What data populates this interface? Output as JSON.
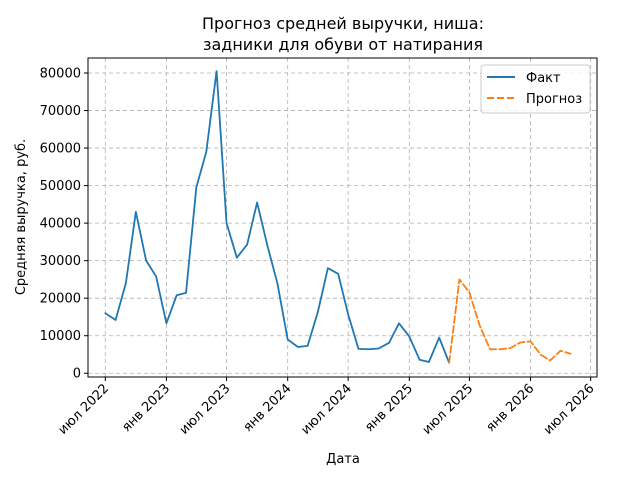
{
  "chart_data": {
    "type": "line",
    "title_line1": "Прогноз средней выручки, ниша:",
    "title_line2": "задники для обуви от натирания",
    "xlabel": "Дата",
    "ylabel": "Средняя выручка, руб.",
    "ylim": [
      -1000,
      84000
    ],
    "xlim": [
      "2022-05-10",
      "2026-07-20"
    ],
    "grid": true,
    "legend_position": "top-right",
    "x_ticks": [
      {
        "date": "2022-07-01",
        "label": "июл 2022"
      },
      {
        "date": "2023-01-01",
        "label": "янв 2023"
      },
      {
        "date": "2023-07-01",
        "label": "июл 2023"
      },
      {
        "date": "2024-01-01",
        "label": "янв 2024"
      },
      {
        "date": "2024-07-01",
        "label": "июл 2024"
      },
      {
        "date": "2025-01-01",
        "label": "янв 2025"
      },
      {
        "date": "2025-07-01",
        "label": "июл 2025"
      },
      {
        "date": "2026-01-01",
        "label": "янв 2026"
      },
      {
        "date": "2026-07-01",
        "label": "июл 2026"
      }
    ],
    "y_ticks": [
      0,
      10000,
      20000,
      30000,
      40000,
      50000,
      60000,
      70000,
      80000
    ],
    "series": [
      {
        "name": "Факт",
        "color": "#1f77b4",
        "style": "solid",
        "points": [
          {
            "x": "2022-07-01",
            "y": 16000
          },
          {
            "x": "2022-08-01",
            "y": 14200
          },
          {
            "x": "2022-09-01",
            "y": 24000
          },
          {
            "x": "2022-10-01",
            "y": 43000
          },
          {
            "x": "2022-11-01",
            "y": 30000
          },
          {
            "x": "2022-12-01",
            "y": 25800
          },
          {
            "x": "2023-01-01",
            "y": 13300
          },
          {
            "x": "2023-02-01",
            "y": 20800
          },
          {
            "x": "2023-03-01",
            "y": 21400
          },
          {
            "x": "2023-04-01",
            "y": 49500
          },
          {
            "x": "2023-05-01",
            "y": 59000
          },
          {
            "x": "2023-06-01",
            "y": 80500
          },
          {
            "x": "2023-07-01",
            "y": 40000
          },
          {
            "x": "2023-08-01",
            "y": 30800
          },
          {
            "x": "2023-09-01",
            "y": 34300
          },
          {
            "x": "2023-10-01",
            "y": 45500
          },
          {
            "x": "2023-11-01",
            "y": 34000
          },
          {
            "x": "2023-12-01",
            "y": 24000
          },
          {
            "x": "2024-01-01",
            "y": 9000
          },
          {
            "x": "2024-02-01",
            "y": 7000
          },
          {
            "x": "2024-03-01",
            "y": 7300
          },
          {
            "x": "2024-04-01",
            "y": 16400
          },
          {
            "x": "2024-05-01",
            "y": 28000
          },
          {
            "x": "2024-06-01",
            "y": 26500
          },
          {
            "x": "2024-07-01",
            "y": 15700
          },
          {
            "x": "2024-08-01",
            "y": 6500
          },
          {
            "x": "2024-09-01",
            "y": 6400
          },
          {
            "x": "2024-10-01",
            "y": 6600
          },
          {
            "x": "2024-11-01",
            "y": 8100
          },
          {
            "x": "2024-12-01",
            "y": 13300
          },
          {
            "x": "2025-01-01",
            "y": 9800
          },
          {
            "x": "2025-02-01",
            "y": 3600
          },
          {
            "x": "2025-03-01",
            "y": 3000
          },
          {
            "x": "2025-04-01",
            "y": 9500
          },
          {
            "x": "2025-05-01",
            "y": 2800
          }
        ]
      },
      {
        "name": "Прогноз",
        "color": "#ff7f0e",
        "style": "dashed",
        "points": [
          {
            "x": "2025-05-01",
            "y": 2800
          },
          {
            "x": "2025-06-01",
            "y": 25000
          },
          {
            "x": "2025-07-01",
            "y": 21500
          },
          {
            "x": "2025-08-01",
            "y": 12700
          },
          {
            "x": "2025-09-01",
            "y": 6400
          },
          {
            "x": "2025-10-01",
            "y": 6400
          },
          {
            "x": "2025-11-01",
            "y": 6700
          },
          {
            "x": "2025-12-01",
            "y": 8200
          },
          {
            "x": "2026-01-01",
            "y": 8500
          },
          {
            "x": "2026-02-01",
            "y": 4900
          },
          {
            "x": "2026-03-01",
            "y": 3400
          },
          {
            "x": "2026-04-01",
            "y": 6000
          },
          {
            "x": "2026-05-01",
            "y": 5200
          }
        ]
      }
    ]
  }
}
